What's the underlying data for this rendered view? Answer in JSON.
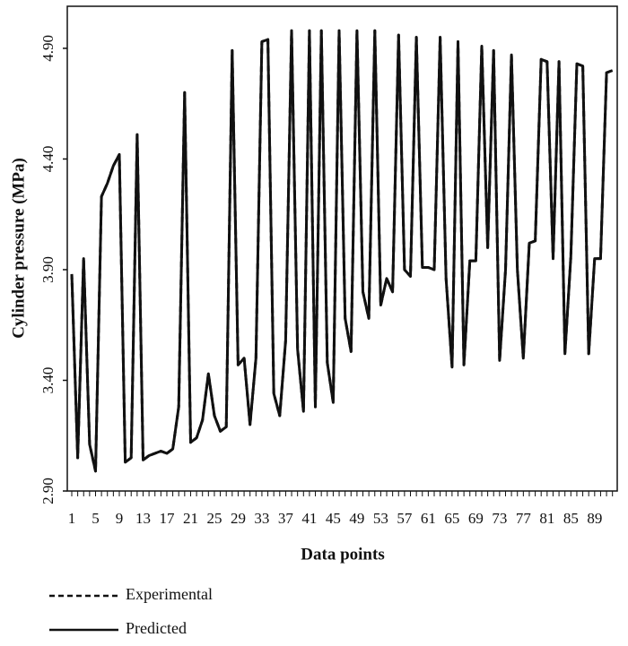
{
  "chart_data": {
    "type": "line",
    "ylabel": "Cylinder  pressure  (MPa)",
    "xlabel": "Data points",
    "categories": [
      1,
      null,
      null,
      null,
      5,
      null,
      null,
      null,
      9,
      null,
      null,
      null,
      13,
      null,
      null,
      null,
      17,
      null,
      null,
      null,
      21,
      null,
      null,
      null,
      25,
      null,
      null,
      null,
      29,
      null,
      null,
      null,
      33,
      null,
      null,
      null,
      37,
      null,
      null,
      null,
      41,
      null,
      null,
      null,
      45,
      null,
      null,
      null,
      49,
      null,
      null,
      null,
      53,
      null,
      null,
      null,
      57,
      null,
      null,
      null,
      61,
      null,
      null,
      null,
      65,
      null,
      null,
      null,
      69,
      null,
      null,
      null,
      73,
      null,
      null,
      null,
      77,
      null,
      null,
      null,
      81,
      null,
      null,
      null,
      85,
      null,
      null,
      null,
      89,
      null,
      null,
      null
    ],
    "series": [
      {
        "name": "Experimental",
        "color": "#111111",
        "linestyle": "dashed",
        "values": [
          3.88,
          3.05,
          3.95,
          3.11,
          2.99,
          4.23,
          4.29,
          4.37,
          4.42,
          3.03,
          3.05,
          4.51,
          3.04,
          3.06,
          3.07,
          3.08,
          3.07,
          3.09,
          3.28,
          4.7,
          3.12,
          3.14,
          3.22,
          3.43,
          3.24,
          3.17,
          3.19,
          4.89,
          3.47,
          3.5,
          3.2,
          3.5,
          4.93,
          4.94,
          3.34,
          3.24,
          3.58,
          4.98,
          3.54,
          3.26,
          4.98,
          3.28,
          4.98,
          3.48,
          3.3,
          4.98,
          3.68,
          3.53,
          4.98,
          3.8,
          3.68,
          4.98,
          3.74,
          3.86,
          3.8,
          4.96,
          3.9,
          3.87,
          4.95,
          3.91,
          3.91,
          3.9,
          4.95,
          3.86,
          3.46,
          4.93,
          3.47,
          3.94,
          3.94,
          4.91,
          4.0,
          4.89,
          3.49,
          3.9,
          4.87,
          3.9,
          3.5,
          4.02,
          4.03,
          4.85,
          4.84,
          3.95,
          4.84,
          3.52,
          3.96,
          4.83,
          4.82,
          3.52,
          3.95,
          3.95,
          4.79,
          4.8
        ]
      },
      {
        "name": "Predicted",
        "color": "#111111",
        "linestyle": "solid",
        "values": [
          3.88,
          3.05,
          3.95,
          3.11,
          2.99,
          4.23,
          4.29,
          4.37,
          4.42,
          3.03,
          3.05,
          4.51,
          3.04,
          3.06,
          3.07,
          3.08,
          3.07,
          3.09,
          3.28,
          4.7,
          3.12,
          3.14,
          3.22,
          3.43,
          3.24,
          3.17,
          3.19,
          4.89,
          3.47,
          3.5,
          3.2,
          3.5,
          4.93,
          4.94,
          3.34,
          3.24,
          3.58,
          4.98,
          3.54,
          3.26,
          4.98,
          3.28,
          4.98,
          3.48,
          3.3,
          4.98,
          3.68,
          3.53,
          4.98,
          3.8,
          3.68,
          4.98,
          3.74,
          3.86,
          3.8,
          4.96,
          3.9,
          3.87,
          4.95,
          3.91,
          3.91,
          3.9,
          4.95,
          3.86,
          3.46,
          4.93,
          3.47,
          3.94,
          3.94,
          4.91,
          4.0,
          4.89,
          3.49,
          3.9,
          4.87,
          3.9,
          3.5,
          4.02,
          4.03,
          4.85,
          4.84,
          3.95,
          4.84,
          3.52,
          3.96,
          4.83,
          4.82,
          3.52,
          3.95,
          3.95,
          4.79,
          4.8
        ]
      }
    ],
    "ylim": [
      2.9,
      5.09
    ],
    "yticks": [
      {
        "value": 2.9,
        "label": "2.90"
      },
      {
        "value": 3.4,
        "label": "3.40"
      },
      {
        "value": 3.9,
        "label": "3.90"
      },
      {
        "value": 4.4,
        "label": "4.40"
      },
      {
        "value": 4.9,
        "label": "4.90"
      }
    ],
    "grid": false
  }
}
